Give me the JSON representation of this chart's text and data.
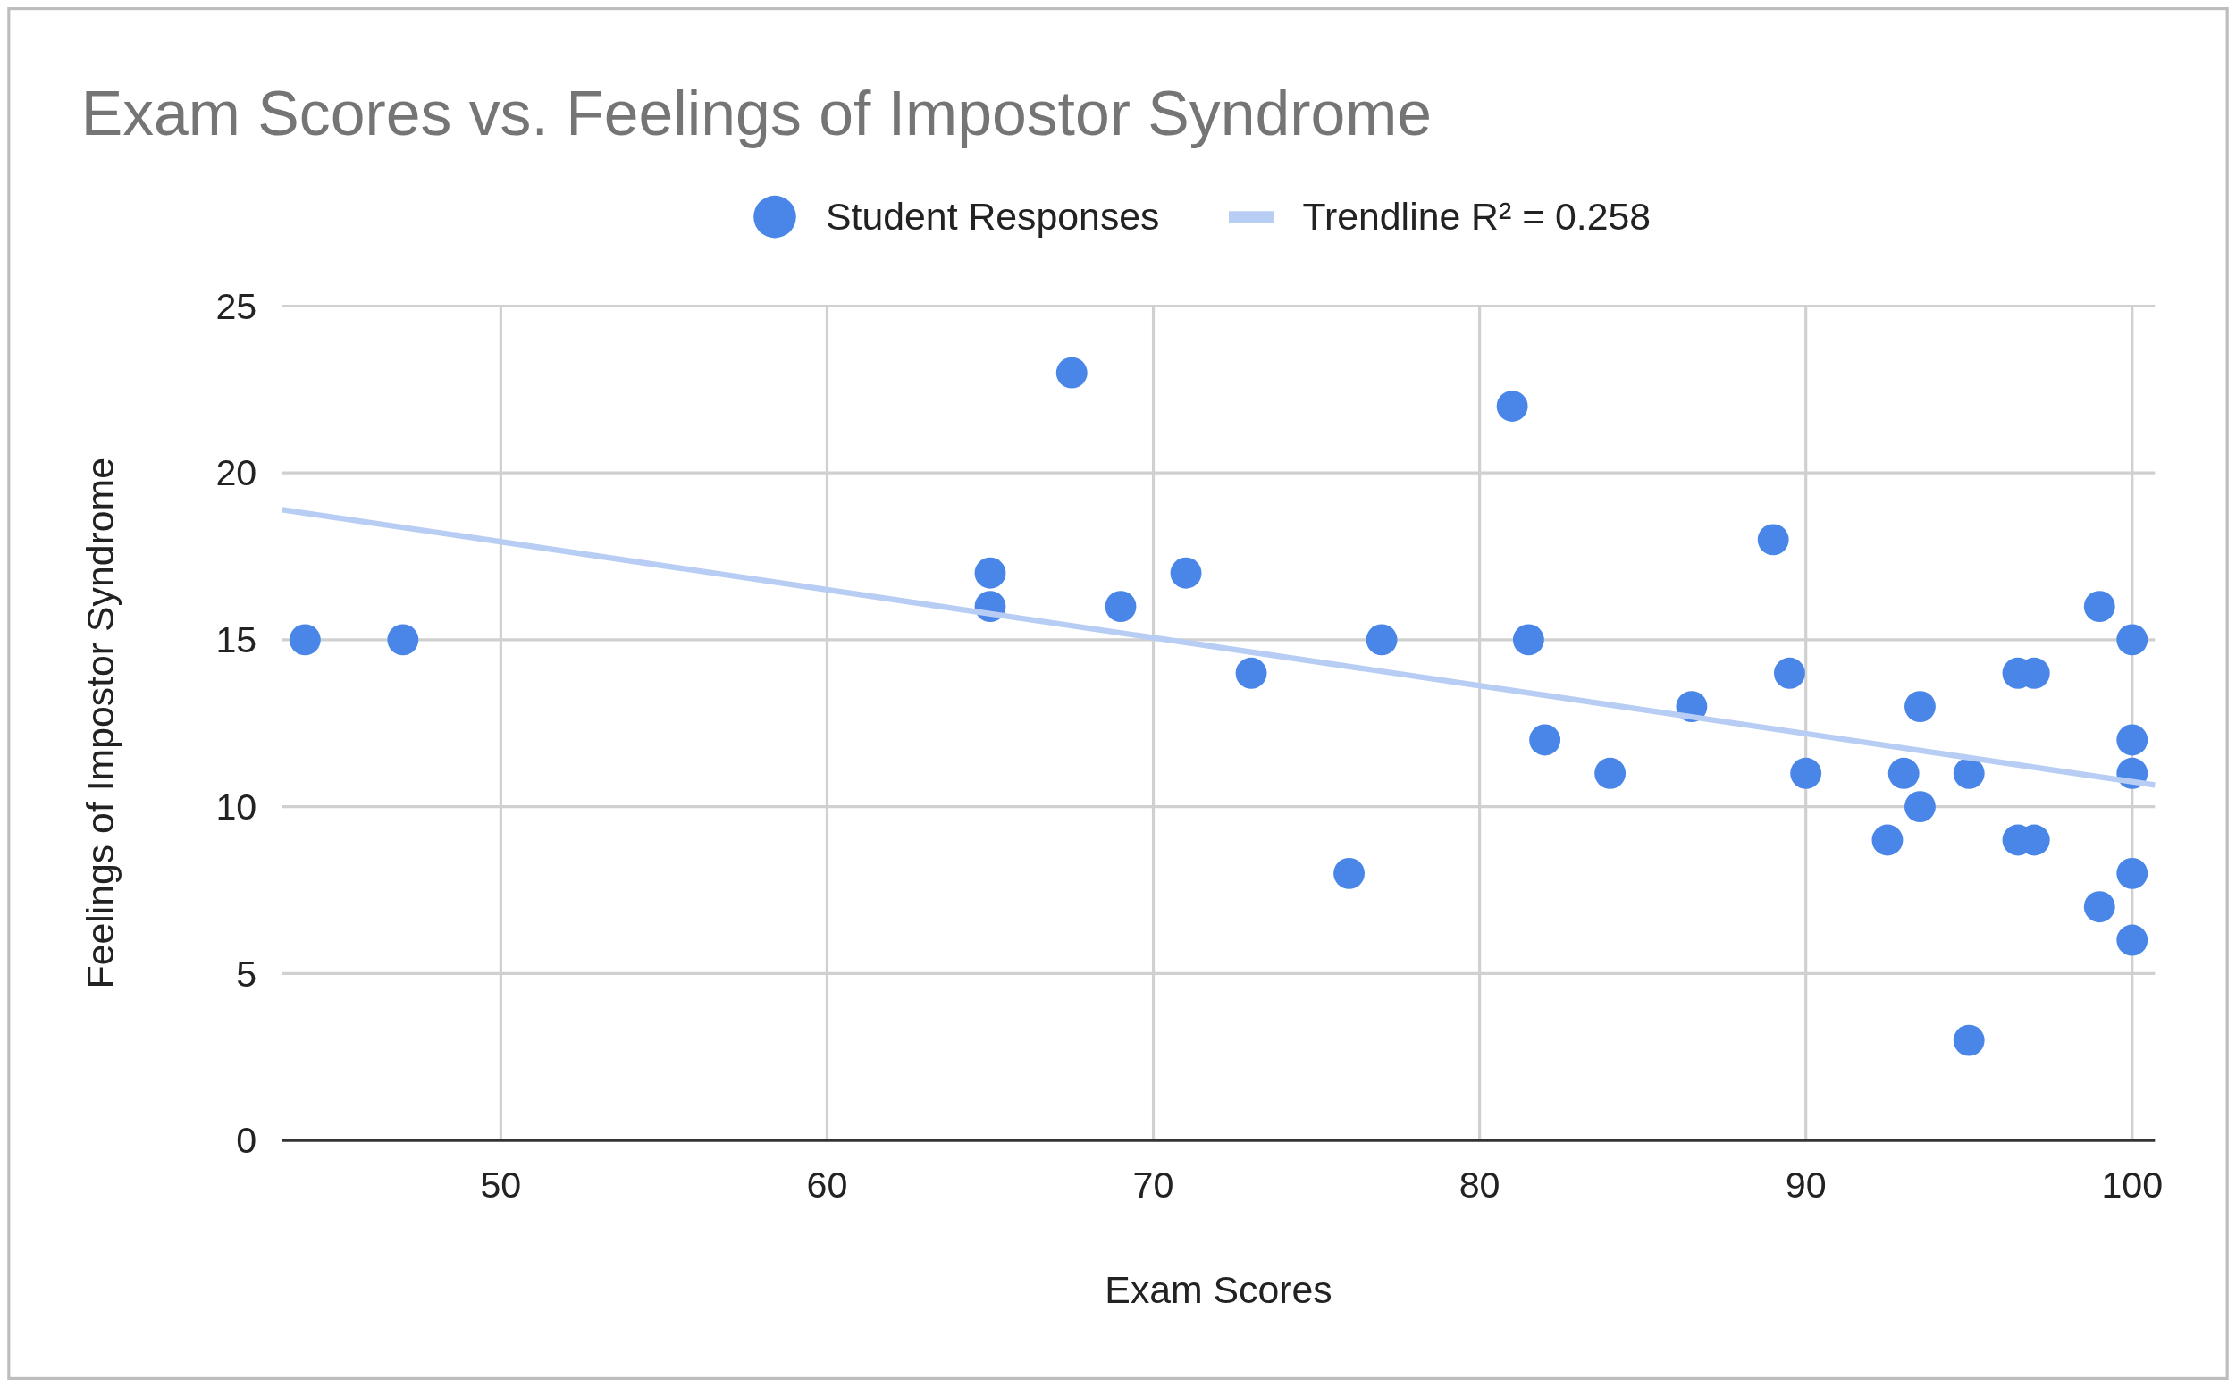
{
  "chart_data": {
    "type": "scatter",
    "title": "Exam Scores vs. Feelings of Impostor Syndrome",
    "xlabel": "Exam Scores",
    "ylabel": "Feelings of Impostor Syndrome",
    "xlim": [
      43.3,
      100.7
    ],
    "ylim": [
      0,
      25
    ],
    "xticks": [
      50,
      60,
      70,
      80,
      90,
      100
    ],
    "yticks": [
      0,
      5,
      10,
      15,
      20,
      25
    ],
    "grid": true,
    "legend": "top",
    "series": [
      {
        "name": "Student Responses",
        "marker": "circle",
        "color": "#4a86e8",
        "x": [
          44,
          47,
          67.5,
          65,
          65,
          69,
          71,
          73,
          76,
          77,
          81,
          81.5,
          82,
          84,
          86.5,
          89,
          89.5,
          90,
          92.5,
          93,
          93.5,
          93.5,
          95,
          95,
          96.5,
          97,
          96.5,
          97,
          99,
          99,
          100,
          100,
          100,
          100,
          100
        ],
        "values": [
          15,
          15,
          23,
          17,
          16,
          16,
          17,
          14,
          8,
          15,
          22,
          15,
          12,
          11,
          13,
          18,
          14,
          11,
          9,
          11,
          13,
          10,
          11,
          3,
          14,
          14,
          9,
          9,
          16,
          7,
          15,
          12,
          11,
          8,
          6
        ]
      },
      {
        "name": "Trendline R² = 0.258",
        "type": "line",
        "marker": "none",
        "color": "#b7cdf4",
        "x": [
          43.3,
          100.7
        ],
        "values": [
          18.9,
          10.65
        ]
      }
    ]
  }
}
